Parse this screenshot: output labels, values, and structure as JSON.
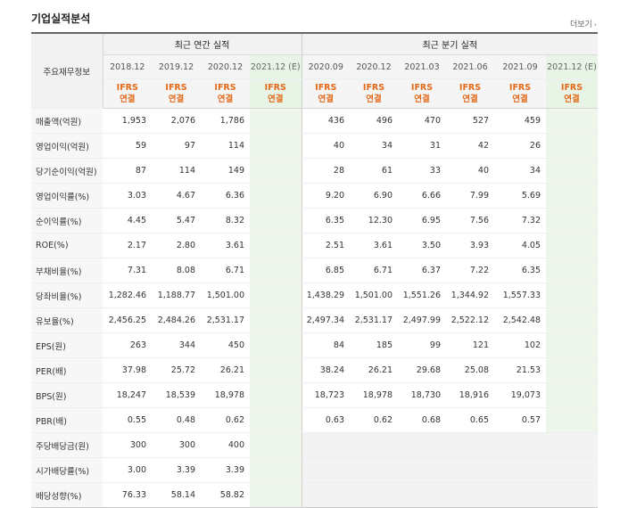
{
  "section_title": "기업실적분석",
  "more_label": "더보기",
  "more_icon": "chevron-right-icon",
  "header": {
    "stub": "주요재무정보",
    "annual_group": "최근 연간 실적",
    "quarter_group": "최근 분기 실적",
    "annual_periods": [
      "2018.12",
      "2019.12",
      "2020.12",
      "2021.12 (E)"
    ],
    "quarter_periods": [
      "2020.09",
      "2020.12",
      "2021.03",
      "2021.06",
      "2021.09",
      "2021.12 (E)"
    ],
    "ifrs_line1": "IFRS",
    "ifrs_line2": "연결"
  },
  "rows": [
    {
      "label": "매출액(억원)",
      "annual": [
        "1,953",
        "2,076",
        "1,786",
        ""
      ],
      "quarter": [
        "436",
        "496",
        "470",
        "527",
        "459",
        ""
      ]
    },
    {
      "label": "영업이익(억원)",
      "annual": [
        "59",
        "97",
        "114",
        ""
      ],
      "quarter": [
        "40",
        "34",
        "31",
        "42",
        "26",
        ""
      ]
    },
    {
      "label": "당기순이익(억원)",
      "annual": [
        "87",
        "114",
        "149",
        ""
      ],
      "quarter": [
        "28",
        "61",
        "33",
        "40",
        "34",
        ""
      ]
    },
    {
      "label": "영업이익률(%)",
      "annual": [
        "3.03",
        "4.67",
        "6.36",
        ""
      ],
      "quarter": [
        "9.20",
        "6.90",
        "6.66",
        "7.99",
        "5.69",
        ""
      ]
    },
    {
      "label": "순이익률(%)",
      "annual": [
        "4.45",
        "5.47",
        "8.32",
        ""
      ],
      "quarter": [
        "6.35",
        "12.30",
        "6.95",
        "7.56",
        "7.32",
        ""
      ]
    },
    {
      "label": "ROE(%)",
      "annual": [
        "2.17",
        "2.80",
        "3.61",
        ""
      ],
      "quarter": [
        "2.51",
        "3.61",
        "3.50",
        "3.93",
        "4.05",
        ""
      ]
    },
    {
      "label": "부채비율(%)",
      "annual": [
        "7.31",
        "8.08",
        "6.71",
        ""
      ],
      "quarter": [
        "6.85",
        "6.71",
        "6.37",
        "7.22",
        "6.35",
        ""
      ]
    },
    {
      "label": "당좌비율(%)",
      "annual": [
        "1,282.46",
        "1,188.77",
        "1,501.00",
        ""
      ],
      "quarter": [
        "1,438.29",
        "1,501.00",
        "1,551.26",
        "1,344.92",
        "1,557.33",
        ""
      ]
    },
    {
      "label": "유보율(%)",
      "annual": [
        "2,456.25",
        "2,484.26",
        "2,531.17",
        ""
      ],
      "quarter": [
        "2,497.34",
        "2,531.17",
        "2,497.99",
        "2,522.12",
        "2,542.48",
        ""
      ]
    },
    {
      "label": "EPS(원)",
      "annual": [
        "263",
        "344",
        "450",
        ""
      ],
      "quarter": [
        "84",
        "185",
        "99",
        "121",
        "102",
        ""
      ]
    },
    {
      "label": "PER(배)",
      "annual": [
        "37.98",
        "25.72",
        "26.21",
        ""
      ],
      "quarter": [
        "38.24",
        "26.21",
        "29.68",
        "25.08",
        "21.53",
        ""
      ]
    },
    {
      "label": "BPS(원)",
      "annual": [
        "18,247",
        "18,539",
        "18,978",
        ""
      ],
      "quarter": [
        "18,723",
        "18,978",
        "18,730",
        "18,916",
        "19,073",
        ""
      ]
    },
    {
      "label": "PBR(배)",
      "annual": [
        "0.55",
        "0.48",
        "0.62",
        ""
      ],
      "quarter": [
        "0.63",
        "0.62",
        "0.68",
        "0.65",
        "0.57",
        ""
      ]
    },
    {
      "label": "주당배당금(원)",
      "annual": [
        "300",
        "300",
        "400",
        ""
      ],
      "quarter": [
        "",
        "",
        "",
        "",
        "",
        ""
      ]
    },
    {
      "label": "시가배당률(%)",
      "annual": [
        "3.00",
        "3.39",
        "3.39",
        ""
      ],
      "quarter": [
        "",
        "",
        "",
        "",
        "",
        ""
      ]
    },
    {
      "label": "배당성향(%)",
      "annual": [
        "76.33",
        "58.14",
        "58.82",
        ""
      ],
      "quarter": [
        "",
        "",
        "",
        "",
        "",
        ""
      ]
    }
  ]
}
